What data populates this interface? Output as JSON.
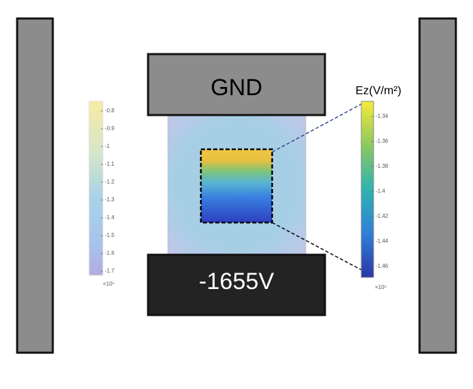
{
  "electrodes": {
    "top": "GND",
    "bottom": "-1655V"
  },
  "left_colorbar": {
    "ticks": [
      -0.8,
      -0.9,
      -1,
      -1.1,
      -1.2,
      -1.3,
      -1.4,
      -1.5,
      -1.6,
      -1.7
    ],
    "multiplier": "×10⁵"
  },
  "right_colorbar": {
    "label": "Ez(V/m²)",
    "ticks": [
      -1.34,
      -1.36,
      -1.38,
      -1.4,
      -1.42,
      -1.44,
      -1.46
    ],
    "multiplier": "×10⁵"
  }
}
